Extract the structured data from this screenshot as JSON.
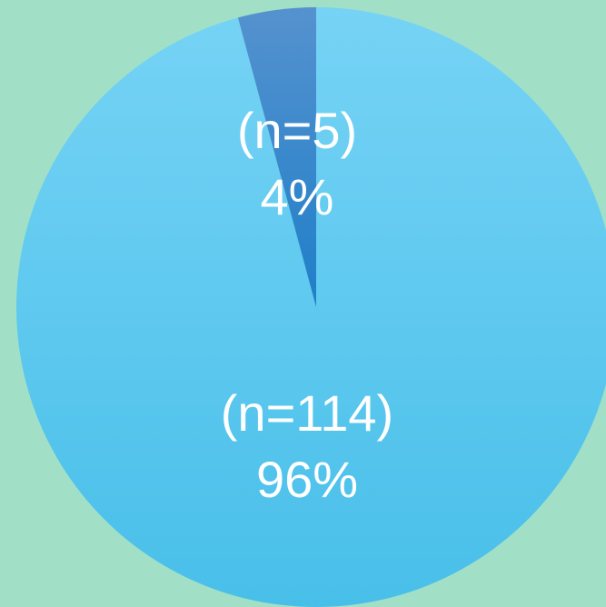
{
  "chart_data": {
    "type": "pie",
    "categories": [
      "",
      ""
    ],
    "values": [
      114,
      5
    ],
    "labels": [
      {
        "count": "(n=114)",
        "percent": "96%"
      },
      {
        "count": "(n=5)",
        "percent": "4%"
      }
    ],
    "colors": [
      "#5ccaf2",
      "#2b82c9"
    ],
    "legend": "none"
  },
  "background": "#a1e0c6"
}
